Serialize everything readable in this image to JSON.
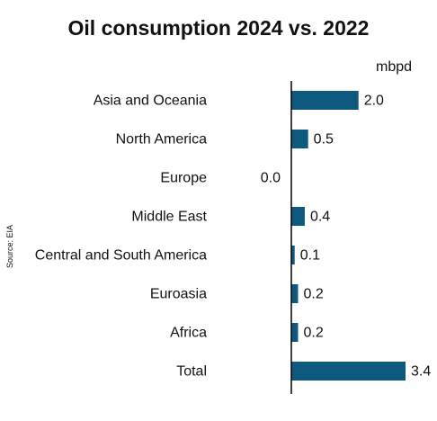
{
  "chart_data": {
    "type": "bar",
    "orientation": "horizontal",
    "title": "Oil consumption 2024 vs. 2022",
    "unit": "mbpd",
    "source": "Source: EIA",
    "categories": [
      "Asia and Oceania",
      "North America",
      "Europe",
      "Middle East",
      "Central and South America",
      "Euroasia",
      "Africa",
      "Total"
    ],
    "values": [
      2.0,
      0.5,
      0.0,
      0.4,
      0.1,
      0.2,
      0.2,
      3.4
    ],
    "value_labels": [
      "2.0",
      "0.5",
      "0.0",
      "0.4",
      "0.1",
      "0.2",
      "0.2",
      "3.4"
    ],
    "xlim": [
      0,
      3.5
    ],
    "bar_color": "#0d5a7e",
    "grid": false,
    "legend": "none"
  }
}
